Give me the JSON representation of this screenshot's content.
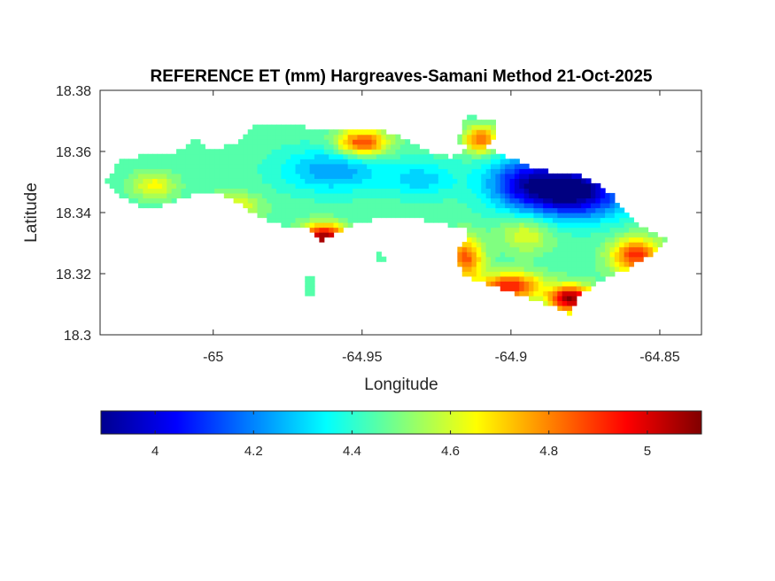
{
  "chart_data": {
    "type": "heatmap",
    "title": "REFERENCE ET (mm) Hargreaves-Samani Method  21-Oct-2025",
    "xlabel": "Longitude",
    "ylabel": "Latitude",
    "xlim": [
      -65.038,
      -64.836
    ],
    "ylim": [
      18.3,
      18.38
    ],
    "xticks": [
      {
        "value": -65.0,
        "label": "-65"
      },
      {
        "value": -64.95,
        "label": "-64.95"
      },
      {
        "value": -64.9,
        "label": "-64.9"
      },
      {
        "value": -64.85,
        "label": "-64.85"
      }
    ],
    "yticks": [
      {
        "value": 18.3,
        "label": "18.3"
      },
      {
        "value": 18.32,
        "label": "18.32"
      },
      {
        "value": 18.34,
        "label": "18.34"
      },
      {
        "value": 18.36,
        "label": "18.36"
      },
      {
        "value": 18.38,
        "label": "18.38"
      }
    ],
    "colorbar": {
      "colormap": "jet",
      "location": "southoutside",
      "range": [
        3.89,
        5.11
      ],
      "ticks": [
        {
          "value": 4.0,
          "label": "4"
        },
        {
          "value": 4.2,
          "label": "4.2"
        },
        {
          "value": 4.4,
          "label": "4.4"
        },
        {
          "value": 4.6,
          "label": "4.6"
        },
        {
          "value": 4.8,
          "label": "4.8"
        },
        {
          "value": 5.0,
          "label": "5"
        }
      ]
    },
    "island_outline": [
      [
        -65.036,
        18.351
      ],
      [
        -65.031,
        18.357
      ],
      [
        -65.022,
        18.359
      ],
      [
        -65.012,
        18.36
      ],
      [
        -65.006,
        18.364
      ],
      [
        -65.0,
        18.36
      ],
      [
        -64.99,
        18.364
      ],
      [
        -64.987,
        18.369
      ],
      [
        -64.975,
        18.369
      ],
      [
        -64.965,
        18.367
      ],
      [
        -64.95,
        18.368
      ],
      [
        -64.94,
        18.366
      ],
      [
        -64.932,
        18.362
      ],
      [
        -64.925,
        18.359
      ],
      [
        -64.92,
        18.358
      ],
      [
        -64.916,
        18.36
      ],
      [
        -64.906,
        18.36
      ],
      [
        -64.896,
        18.356
      ],
      [
        -64.886,
        18.353
      ],
      [
        -64.876,
        18.352
      ],
      [
        -64.866,
        18.346
      ],
      [
        -64.861,
        18.339
      ],
      [
        -64.856,
        18.335
      ],
      [
        -64.848,
        18.331
      ],
      [
        -64.852,
        18.327
      ],
      [
        -64.862,
        18.321
      ],
      [
        -64.87,
        18.318
      ],
      [
        -64.877,
        18.313
      ],
      [
        -64.88,
        18.307
      ],
      [
        -64.89,
        18.311
      ],
      [
        -64.898,
        18.313
      ],
      [
        -64.905,
        18.316
      ],
      [
        -64.912,
        18.318
      ],
      [
        -64.916,
        18.32
      ],
      [
        -64.919,
        18.327
      ],
      [
        -64.913,
        18.334
      ],
      [
        -64.925,
        18.337
      ],
      [
        -64.94,
        18.339
      ],
      [
        -64.95,
        18.337
      ],
      [
        -64.958,
        18.334
      ],
      [
        -64.964,
        18.331
      ],
      [
        -64.968,
        18.335
      ],
      [
        -64.977,
        18.336
      ],
      [
        -64.985,
        18.339
      ],
      [
        -64.994,
        18.345
      ],
      [
        -65.001,
        18.347
      ],
      [
        -65.01,
        18.345
      ],
      [
        -65.02,
        18.341
      ],
      [
        -65.028,
        18.343
      ],
      [
        -65.034,
        18.348
      ]
    ],
    "islets": [
      [
        [
          -64.97,
          18.319
        ],
        [
          -64.966,
          18.32
        ],
        [
          -64.966,
          18.313
        ],
        [
          -64.969,
          18.313
        ]
      ],
      [
        [
          -64.945,
          18.327
        ],
        [
          -64.942,
          18.326
        ],
        [
          -64.944,
          18.323
        ],
        [
          -64.946,
          18.324
        ]
      ],
      [
        [
          -64.905,
          18.37
        ],
        [
          -64.915,
          18.372
        ],
        [
          -64.918,
          18.363
        ],
        [
          -64.911,
          18.36
        ],
        [
          -64.906,
          18.364
        ]
      ]
    ],
    "value_field": {
      "base": 4.45,
      "components": [
        {
          "lon": -64.878,
          "lat": 18.347,
          "amp": -0.55,
          "sx": 0.012,
          "sy": 0.006
        },
        {
          "lon": -64.895,
          "lat": 18.35,
          "amp": -0.35,
          "sx": 0.01,
          "sy": 0.006
        },
        {
          "lon": -64.96,
          "lat": 18.354,
          "amp": -0.22,
          "sx": 0.012,
          "sy": 0.005
        },
        {
          "lon": -64.93,
          "lat": 18.351,
          "amp": -0.15,
          "sx": 0.008,
          "sy": 0.004
        },
        {
          "lon": -64.963,
          "lat": 18.332,
          "amp": 0.65,
          "sx": 0.005,
          "sy": 0.003
        },
        {
          "lon": -64.95,
          "lat": 18.363,
          "amp": 0.45,
          "sx": 0.006,
          "sy": 0.003
        },
        {
          "lon": -64.91,
          "lat": 18.364,
          "amp": 0.4,
          "sx": 0.004,
          "sy": 0.003
        },
        {
          "lon": -64.88,
          "lat": 18.312,
          "amp": 0.65,
          "sx": 0.005,
          "sy": 0.003
        },
        {
          "lon": -64.9,
          "lat": 18.316,
          "amp": 0.5,
          "sx": 0.007,
          "sy": 0.003
        },
        {
          "lon": -64.915,
          "lat": 18.325,
          "amp": 0.4,
          "sx": 0.004,
          "sy": 0.005
        },
        {
          "lon": -64.858,
          "lat": 18.326,
          "amp": 0.45,
          "sx": 0.006,
          "sy": 0.004
        },
        {
          "lon": -64.993,
          "lat": 18.342,
          "amp": 0.2,
          "sx": 0.006,
          "sy": 0.003
        },
        {
          "lon": -65.02,
          "lat": 18.349,
          "amp": 0.2,
          "sx": 0.005,
          "sy": 0.003
        },
        {
          "lon": -64.895,
          "lat": 18.333,
          "amp": 0.18,
          "sx": 0.006,
          "sy": 0.004
        }
      ]
    }
  }
}
